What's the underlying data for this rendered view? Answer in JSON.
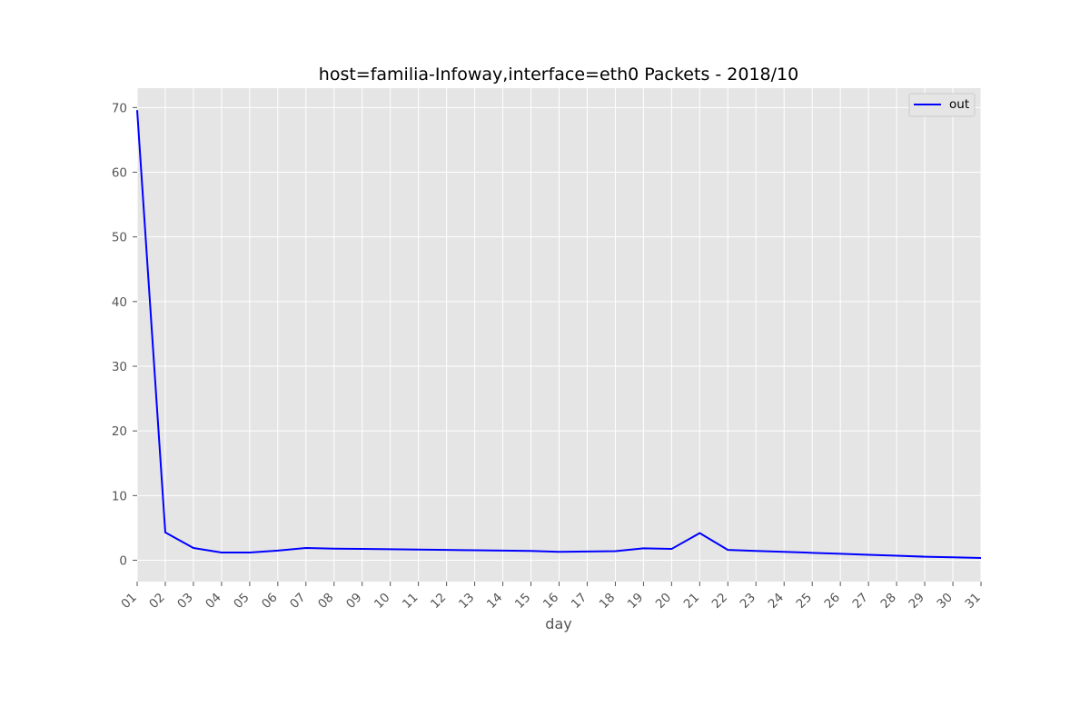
{
  "chart_data": {
    "type": "line",
    "title": "host=familia-Infoway,interface=eth0 Packets - 2018/10",
    "xlabel": "day",
    "ylabel": "",
    "categories": [
      "01",
      "02",
      "03",
      "04",
      "05",
      "06",
      "07",
      "08",
      "09",
      "10",
      "11",
      "12",
      "13",
      "14",
      "15",
      "16",
      "17",
      "18",
      "19",
      "20",
      "21",
      "22",
      "23",
      "24",
      "25",
      "26",
      "27",
      "28",
      "29",
      "30",
      "31"
    ],
    "series": [
      {
        "name": "out",
        "color": "#0000ff",
        "values": [
          69.6,
          4.3,
          1.9,
          1.2,
          1.2,
          1.5,
          1.9,
          1.8,
          1.75,
          1.7,
          1.65,
          1.6,
          1.55,
          1.5,
          1.45,
          1.3,
          1.35,
          1.4,
          1.85,
          1.75,
          4.2,
          1.6,
          1.45,
          1.3,
          1.15,
          1.0,
          0.85,
          0.7,
          0.55,
          0.45,
          0.35
        ]
      }
    ],
    "ylim": [
      -3.3,
      73
    ],
    "yticks": [
      0,
      10,
      20,
      30,
      40,
      50,
      60,
      70
    ],
    "grid": true,
    "legend_position": "top-right"
  }
}
